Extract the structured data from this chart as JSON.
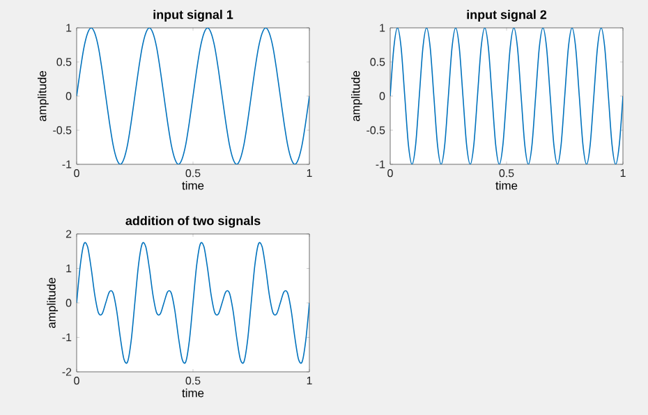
{
  "chart_data": [
    {
      "type": "line",
      "title": "input signal 1",
      "xlabel": "time",
      "ylabel": "amplitude",
      "xlim": [
        0,
        1
      ],
      "ylim": [
        -1,
        1
      ],
      "xticks": [
        0,
        0.5,
        1
      ],
      "yticks": [
        -1,
        -0.5,
        0,
        0.5,
        1
      ],
      "x": [
        0,
        0.0156,
        0.0313,
        0.0469,
        0.0625,
        0.0781,
        0.0938,
        0.1094,
        0.125,
        0.1406,
        0.1563,
        0.1719,
        0.1875,
        0.2031,
        0.2188,
        0.2344,
        0.25,
        0.2656,
        0.2813,
        0.2969,
        0.3125,
        0.3281,
        0.3438,
        0.3594,
        0.375,
        0.3906,
        0.4063,
        0.4219,
        0.4375,
        0.4531,
        0.4688,
        0.4844,
        0.5,
        0.5156,
        0.5313,
        0.5469,
        0.5625,
        0.5781,
        0.5938,
        0.6094,
        0.625,
        0.6406,
        0.6563,
        0.6719,
        0.6875,
        0.7031,
        0.7188,
        0.7344,
        0.75,
        0.7656,
        0.7813,
        0.7969,
        0.8125,
        0.8281,
        0.8438,
        0.8594,
        0.875,
        0.8906,
        0.9063,
        0.9219,
        0.9375,
        0.9531,
        0.9688,
        0.9844,
        1
      ],
      "series": [
        {
          "color": "#0072bd",
          "values": [
            0,
            0.38,
            0.71,
            0.92,
            1,
            0.92,
            0.71,
            0.38,
            0,
            -0.38,
            -0.71,
            -0.92,
            -1,
            -0.92,
            -0.71,
            -0.38,
            0,
            0.38,
            0.71,
            0.92,
            1,
            0.92,
            0.71,
            0.38,
            0,
            -0.38,
            -0.71,
            -0.92,
            -1,
            -0.92,
            -0.71,
            -0.38,
            0,
            0.38,
            0.71,
            0.92,
            1,
            0.92,
            0.71,
            0.38,
            0,
            -0.38,
            -0.71,
            -0.92,
            -1,
            -0.92,
            -0.71,
            -0.38,
            0,
            0.38,
            0.71,
            0.92,
            1,
            0.92,
            0.71,
            0.38,
            0,
            -0.38,
            -0.71,
            -0.92,
            -1,
            -0.92,
            -0.71,
            -0.38,
            0
          ]
        }
      ]
    },
    {
      "type": "line",
      "title": "input signal 2",
      "xlabel": "time",
      "ylabel": "amplitude",
      "xlim": [
        0,
        1
      ],
      "ylim": [
        -1,
        1
      ],
      "xticks": [
        0,
        0.5,
        1
      ],
      "yticks": [
        -1,
        -0.5,
        0,
        0.5,
        1
      ],
      "x": [
        0,
        0.0156,
        0.0313,
        0.0469,
        0.0625,
        0.0781,
        0.0938,
        0.1094,
        0.125,
        0.1406,
        0.1563,
        0.1719,
        0.1875,
        0.2031,
        0.2188,
        0.2344,
        0.25,
        0.2656,
        0.2813,
        0.2969,
        0.3125,
        0.3281,
        0.3438,
        0.3594,
        0.375,
        0.3906,
        0.4063,
        0.4219,
        0.4375,
        0.4531,
        0.4688,
        0.4844,
        0.5,
        0.5156,
        0.5313,
        0.5469,
        0.5625,
        0.5781,
        0.5938,
        0.6094,
        0.625,
        0.6406,
        0.6563,
        0.6719,
        0.6875,
        0.7031,
        0.7188,
        0.7344,
        0.75,
        0.7656,
        0.7813,
        0.7969,
        0.8125,
        0.8281,
        0.8438,
        0.8594,
        0.875,
        0.8906,
        0.9063,
        0.9219,
        0.9375,
        0.9531,
        0.9688,
        0.9844,
        1
      ],
      "series": [
        {
          "color": "#0072bd",
          "values": [
            0,
            0.71,
            1,
            0.71,
            0,
            -0.71,
            -1,
            -0.71,
            0,
            0.71,
            1,
            0.71,
            0,
            -0.71,
            -1,
            -0.71,
            0,
            0.71,
            1,
            0.71,
            0,
            -0.71,
            -1,
            -0.71,
            0,
            0.71,
            1,
            0.71,
            0,
            -0.71,
            -1,
            -0.71,
            0,
            0.71,
            1,
            0.71,
            0,
            -0.71,
            -1,
            -0.71,
            0,
            0.71,
            1,
            0.71,
            0,
            -0.71,
            -1,
            -0.71,
            0,
            0.71,
            1,
            0.71,
            0,
            -0.71,
            -1,
            -0.71,
            0,
            0.71,
            1,
            0.71,
            0,
            -0.71,
            -1,
            -0.71,
            0
          ]
        }
      ]
    },
    {
      "type": "line",
      "title": "addition of two signals",
      "xlabel": "time",
      "ylabel": "amplitude",
      "xlim": [
        0,
        1
      ],
      "ylim": [
        -2,
        2
      ],
      "xticks": [
        0,
        0.5,
        1
      ],
      "yticks": [
        -2,
        -1,
        0,
        1,
        2
      ],
      "x": [
        0,
        0.0156,
        0.0313,
        0.0469,
        0.0625,
        0.0781,
        0.0938,
        0.1094,
        0.125,
        0.1406,
        0.1563,
        0.1719,
        0.1875,
        0.2031,
        0.2188,
        0.2344,
        0.25,
        0.2656,
        0.2813,
        0.2969,
        0.3125,
        0.3281,
        0.3438,
        0.3594,
        0.375,
        0.3906,
        0.4063,
        0.4219,
        0.4375,
        0.4531,
        0.4688,
        0.4844,
        0.5,
        0.5156,
        0.5313,
        0.5469,
        0.5625,
        0.5781,
        0.5938,
        0.6094,
        0.625,
        0.6406,
        0.6563,
        0.6719,
        0.6875,
        0.7031,
        0.7188,
        0.7344,
        0.75,
        0.7656,
        0.7813,
        0.7969,
        0.8125,
        0.8281,
        0.8438,
        0.8594,
        0.875,
        0.8906,
        0.9063,
        0.9219,
        0.9375,
        0.9531,
        0.9688,
        0.9844,
        1
      ],
      "series": [
        {
          "color": "#0072bd",
          "values": [
            0,
            1.09,
            1.71,
            1.63,
            1,
            0.22,
            -0.29,
            -0.32,
            0,
            0.32,
            0.29,
            -0.22,
            -1,
            -1.63,
            -1.71,
            -1.09,
            0,
            1.09,
            1.71,
            1.63,
            1,
            0.22,
            -0.29,
            -0.32,
            0,
            0.32,
            0.29,
            -0.22,
            -1,
            -1.63,
            -1.71,
            -1.09,
            0,
            1.09,
            1.71,
            1.63,
            1,
            0.22,
            -0.29,
            -0.32,
            0,
            0.32,
            0.29,
            -0.22,
            -1,
            -1.63,
            -1.71,
            -1.09,
            0,
            1.09,
            1.71,
            1.63,
            1,
            0.22,
            -0.29,
            -0.32,
            0,
            0.32,
            0.29,
            -0.22,
            -1,
            -1.63,
            -1.71,
            -1.09,
            0
          ]
        }
      ]
    }
  ]
}
